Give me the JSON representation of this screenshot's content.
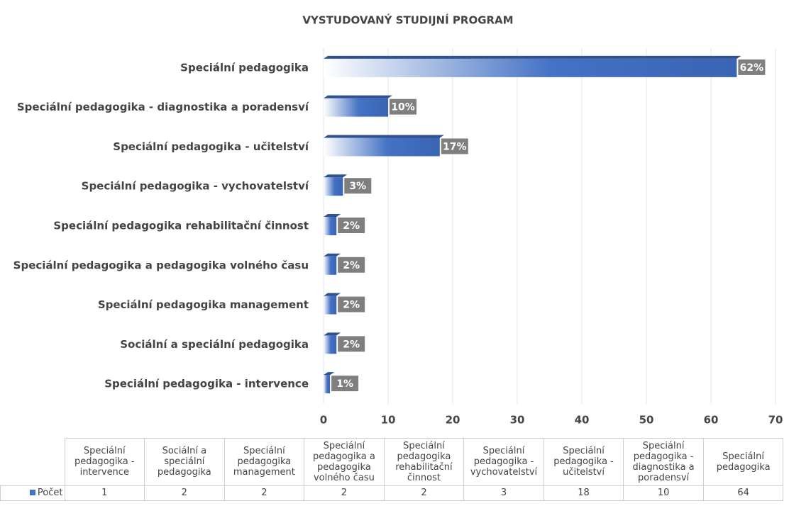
{
  "chart_data": {
    "type": "bar",
    "orientation": "horizontal",
    "title": "VYSTUDOVANÝ STUDIJNÍ PROGRAM",
    "categories": [
      "Speciální pedagogika - intervence",
      "Sociální a speciální pedagogika",
      "Speciální pedagogika management",
      "Speciální pedagogika a pedagogika volného času",
      "Speciální pedagogika rehabilitační činnost",
      "Speciální pedagogika - vychovatelství",
      "Speciální pedagogika - učitelství",
      "Speciální pedagogika - diagnostika a poradensví",
      "Speciální pedagogika"
    ],
    "series": [
      {
        "name": "Počet",
        "color": "#4472c4",
        "values": [
          1,
          2,
          2,
          2,
          2,
          3,
          18,
          10,
          64
        ],
        "share_labels": [
          "1%",
          "2%",
          "2%",
          "2%",
          "2%",
          "3%",
          "17%",
          "10%",
          "62%"
        ]
      }
    ],
    "xlim": [
      0,
      70
    ],
    "xticks": [
      0,
      10,
      20,
      30,
      40,
      50,
      60,
      70
    ],
    "grid": true,
    "data_table": true
  }
}
